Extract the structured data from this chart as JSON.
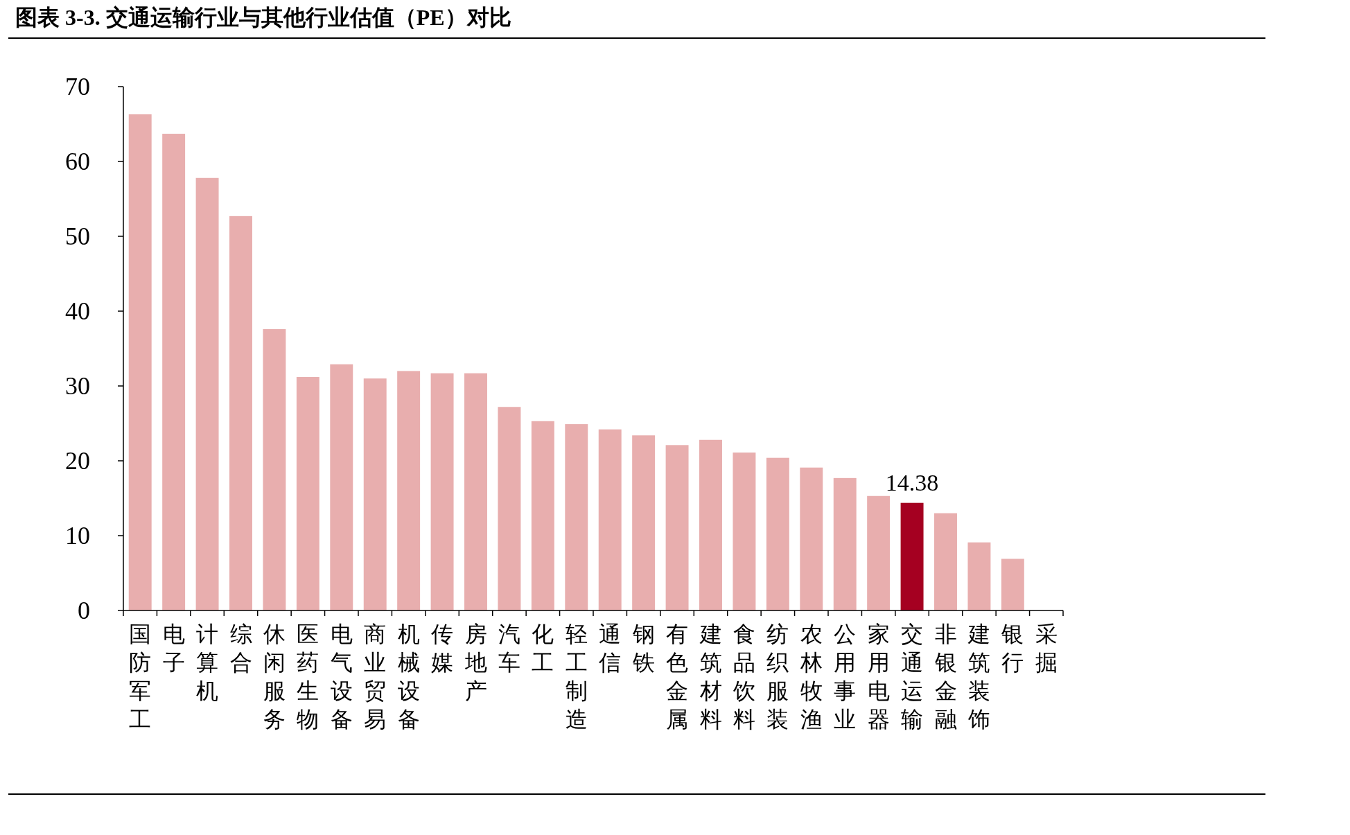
{
  "chart_data": {
    "type": "bar",
    "title": "图表 3-3. 交通运输行业与其他行业估值（PE）对比",
    "categories": [
      "国防军工",
      "电子",
      "计算机",
      "综合",
      "休闲服务",
      "医药生物",
      "电气设备",
      "商业贸易",
      "机械设备",
      "传媒",
      "房地产",
      "汽车",
      "化工",
      "轻工制造",
      "通信",
      "钢铁",
      "有色金属",
      "建筑材料",
      "食品饮料",
      "纺织服装",
      "农林牧渔",
      "公用事业",
      "家用电器",
      "交通运输",
      "非银金融",
      "建筑装饰",
      "银行",
      "采掘"
    ],
    "values": [
      66.3,
      63.7,
      57.8,
      52.7,
      37.6,
      31.2,
      32.9,
      31.0,
      32.0,
      31.7,
      31.7,
      27.2,
      25.3,
      24.9,
      24.2,
      23.4,
      22.1,
      22.8,
      21.1,
      20.4,
      19.1,
      17.7,
      15.3,
      14.38,
      13.0,
      9.1,
      6.9,
      null
    ],
    "colors": [
      "#e8aeae",
      "#e8aeae",
      "#e8aeae",
      "#e8aeae",
      "#e8aeae",
      "#e8aeae",
      "#e8aeae",
      "#e8aeae",
      "#e8aeae",
      "#e8aeae",
      "#e8aeae",
      "#e8aeae",
      "#e8aeae",
      "#e8aeae",
      "#e8aeae",
      "#e8aeae",
      "#e8aeae",
      "#e8aeae",
      "#e8aeae",
      "#e8aeae",
      "#e8aeae",
      "#e8aeae",
      "#e8aeae",
      "#a50021",
      "#e8aeae",
      "#e8aeae",
      "#e8aeae",
      null
    ],
    "value_labels": [
      null,
      null,
      null,
      null,
      null,
      null,
      null,
      null,
      null,
      null,
      null,
      null,
      null,
      null,
      null,
      null,
      null,
      null,
      null,
      null,
      null,
      null,
      null,
      "14.38",
      null,
      null,
      null,
      null
    ],
    "ylim": [
      0,
      70
    ],
    "yticks": [
      0,
      10,
      20,
      30,
      40,
      50,
      60,
      70
    ],
    "grid": false
  }
}
